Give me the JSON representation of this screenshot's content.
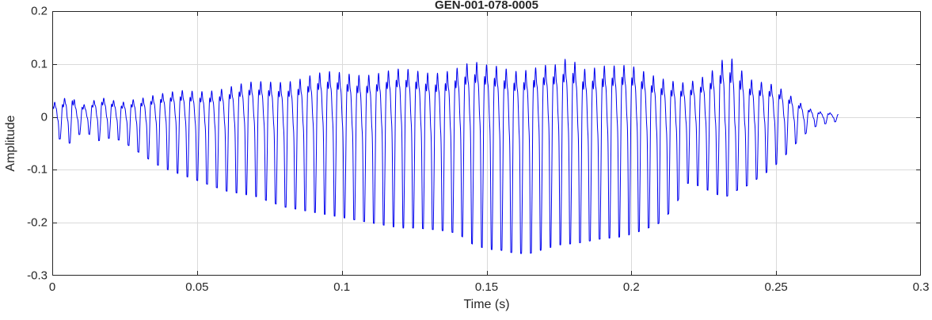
{
  "figure": {
    "title": "GEN-001-078-0005"
  },
  "chart_data": {
    "type": "line",
    "title": "GEN-001-078-0005",
    "xlabel": "Time (s)",
    "ylabel": "Amplitude",
    "xlim": [
      0,
      0.3
    ],
    "ylim": [
      -0.3,
      0.2
    ],
    "xticks": [
      0,
      0.05,
      0.1,
      0.15,
      0.2,
      0.25,
      0.3
    ],
    "xtick_labels": [
      "0",
      "0.05",
      "0.1",
      "0.15",
      "0.2",
      "0.25",
      "0.3"
    ],
    "yticks": [
      -0.3,
      -0.2,
      -0.1,
      0,
      0.1,
      0.2
    ],
    "ytick_labels": [
      "-0.3",
      "-0.2",
      "-0.1",
      "0",
      "0.1",
      "0.2"
    ],
    "grid": true,
    "legend": "none",
    "line_color": "#0000EE",
    "axis_color": "#262626",
    "grid_color": "#dadada",
    "background": "#ffffff",
    "signal": {
      "description": "dense speech-like audio waveform; values are envelope samples [t_seconds, lower_peak, upper_peak]",
      "carrier_hz": 295,
      "t_start": 0,
      "t_end": 0.2715,
      "envelope": [
        [
          0.0,
          -0.045,
          0.04
        ],
        [
          0.004,
          -0.04,
          0.05
        ],
        [
          0.006,
          -0.05,
          0.08
        ],
        [
          0.008,
          -0.035,
          0.04
        ],
        [
          0.012,
          -0.03,
          0.03
        ],
        [
          0.016,
          -0.045,
          0.05
        ],
        [
          0.02,
          -0.04,
          0.045
        ],
        [
          0.024,
          -0.045,
          0.04
        ],
        [
          0.028,
          -0.06,
          0.05
        ],
        [
          0.032,
          -0.075,
          0.055
        ],
        [
          0.036,
          -0.09,
          0.06
        ],
        [
          0.04,
          -0.1,
          0.062
        ],
        [
          0.045,
          -0.11,
          0.068
        ],
        [
          0.05,
          -0.12,
          0.07
        ],
        [
          0.055,
          -0.13,
          0.075
        ],
        [
          0.06,
          -0.14,
          0.08
        ],
        [
          0.065,
          -0.145,
          0.085
        ],
        [
          0.07,
          -0.15,
          0.09
        ],
        [
          0.075,
          -0.16,
          0.095
        ],
        [
          0.08,
          -0.17,
          0.1
        ],
        [
          0.085,
          -0.175,
          0.105
        ],
        [
          0.09,
          -0.18,
          0.11
        ],
        [
          0.095,
          -0.185,
          0.115
        ],
        [
          0.1,
          -0.19,
          0.118
        ],
        [
          0.105,
          -0.195,
          0.12
        ],
        [
          0.11,
          -0.2,
          0.12
        ],
        [
          0.115,
          -0.205,
          0.12
        ],
        [
          0.12,
          -0.21,
          0.122
        ],
        [
          0.125,
          -0.21,
          0.122
        ],
        [
          0.13,
          -0.212,
          0.124
        ],
        [
          0.135,
          -0.215,
          0.128
        ],
        [
          0.14,
          -0.22,
          0.132
        ],
        [
          0.145,
          -0.24,
          0.14
        ],
        [
          0.15,
          -0.25,
          0.135
        ],
        [
          0.155,
          -0.252,
          0.14
        ],
        [
          0.16,
          -0.258,
          0.132
        ],
        [
          0.165,
          -0.258,
          0.13
        ],
        [
          0.17,
          -0.25,
          0.132
        ],
        [
          0.175,
          -0.242,
          0.133
        ],
        [
          0.179,
          -0.24,
          0.168
        ],
        [
          0.182,
          -0.238,
          0.135
        ],
        [
          0.186,
          -0.234,
          0.14
        ],
        [
          0.19,
          -0.23,
          0.142
        ],
        [
          0.195,
          -0.228,
          0.132
        ],
        [
          0.2,
          -0.222,
          0.13
        ],
        [
          0.205,
          -0.212,
          0.12
        ],
        [
          0.21,
          -0.2,
          0.112
        ],
        [
          0.215,
          -0.17,
          0.1
        ],
        [
          0.219,
          -0.125,
          0.09
        ],
        [
          0.223,
          -0.13,
          0.095
        ],
        [
          0.227,
          -0.14,
          0.11
        ],
        [
          0.231,
          -0.15,
          0.15
        ],
        [
          0.233,
          -0.15,
          0.172
        ],
        [
          0.236,
          -0.14,
          0.16
        ],
        [
          0.24,
          -0.13,
          0.11
        ],
        [
          0.244,
          -0.115,
          0.095
        ],
        [
          0.248,
          -0.1,
          0.085
        ],
        [
          0.252,
          -0.08,
          0.07
        ],
        [
          0.256,
          -0.055,
          0.05
        ],
        [
          0.259,
          -0.038,
          0.035
        ],
        [
          0.262,
          -0.022,
          0.022
        ],
        [
          0.265,
          -0.015,
          0.015
        ],
        [
          0.268,
          -0.012,
          0.012
        ],
        [
          0.2715,
          -0.008,
          0.008
        ]
      ]
    }
  }
}
